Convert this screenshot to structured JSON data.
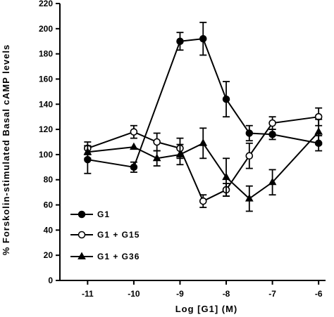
{
  "chart_data": {
    "type": "line",
    "title": "",
    "xlabel": "Log [G1] (M)",
    "ylabel": "% Forskolin-stimulated Basal cAMP levels",
    "xlim": [
      -11.6,
      -5.85
    ],
    "ylim": [
      0,
      220
    ],
    "xticks": [
      -11,
      -10,
      -9,
      -8,
      -7,
      -6
    ],
    "yticks": [
      0,
      20,
      40,
      60,
      80,
      100,
      120,
      140,
      160,
      180,
      200,
      220
    ],
    "grid": false,
    "legend_position": "bottom-left",
    "series": [
      {
        "name": "G1",
        "marker": "filled-circle",
        "x": [
          -11,
          -10,
          -9,
          -8.5,
          -8,
          -7.5,
          -7,
          -6
        ],
        "y": [
          96,
          90,
          190,
          192,
          144,
          117,
          116,
          109
        ],
        "err": [
          11,
          4,
          7,
          13,
          14,
          6,
          4,
          6
        ]
      },
      {
        "name": "G1 + G15",
        "marker": "open-circle",
        "x": [
          -11,
          -10,
          -9.5,
          -9,
          -8.5,
          -8,
          -7.5,
          -7,
          -6
        ],
        "y": [
          105,
          118,
          110,
          105,
          63,
          72,
          99,
          125,
          130
        ],
        "err": [
          5,
          5,
          7,
          8,
          5,
          5,
          10,
          5,
          7
        ]
      },
      {
        "name": "G1 + G36",
        "marker": "filled-triangle",
        "x": [
          -11,
          -10,
          -9.5,
          -9,
          -8.5,
          -8,
          -7.5,
          -7,
          -6
        ],
        "y": [
          102,
          106,
          97,
          100,
          109,
          82,
          65,
          78,
          118
        ],
        "err": [
          5,
          0,
          6,
          8,
          12,
          15,
          10,
          10,
          10
        ]
      }
    ]
  }
}
